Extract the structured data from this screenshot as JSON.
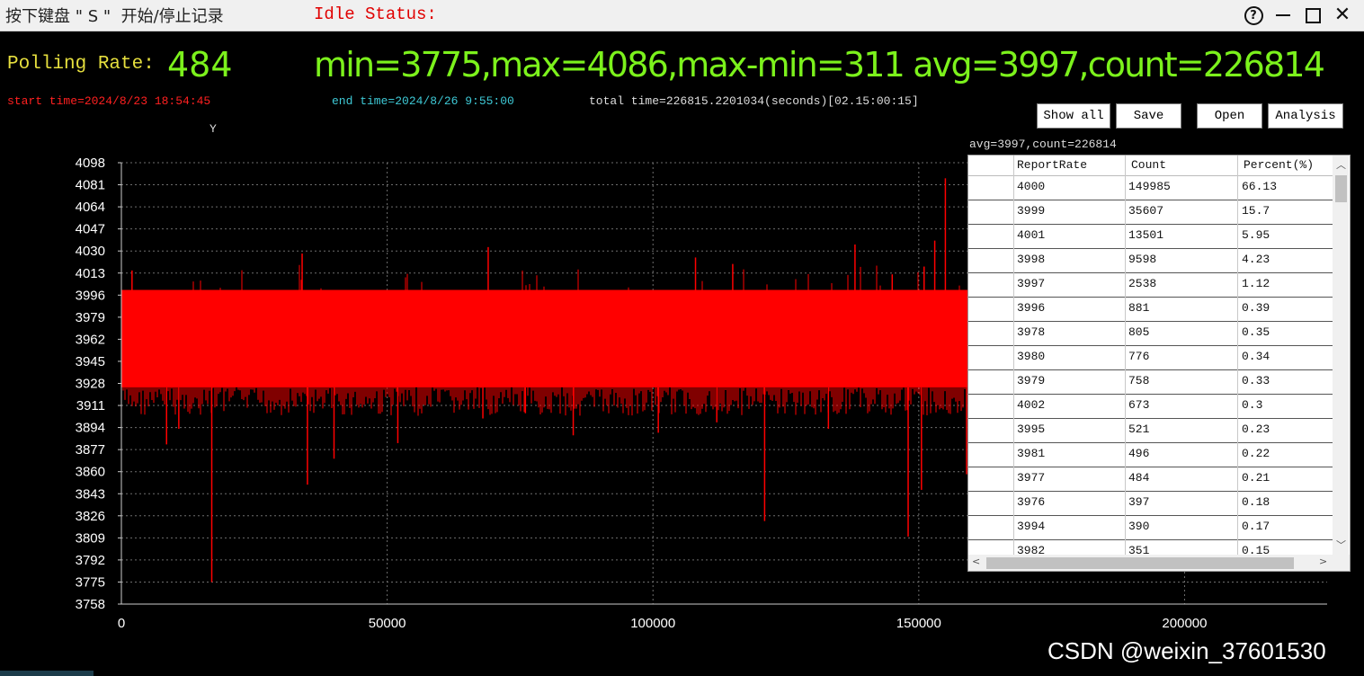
{
  "window": {
    "title_hint": "按下键盘 \" S \"  开始/停止记录",
    "status": "Idle Status:",
    "buttons": {
      "help": "?",
      "close": "✕"
    }
  },
  "header": {
    "polling_rate_label": "Polling Rate:",
    "polling_rate_value": "484",
    "stats": "min=3775,max=4086,max-min=311 avg=3997,count=226814",
    "start_time": "start time=2024/8/23 18:54:45",
    "end_time": "end time=2024/8/26 9:55:00",
    "total_time": "total time=226815.2201034(seconds)[02.15:00:15]"
  },
  "toolbar": {
    "show_all": "Show all",
    "save": "Save",
    "open": "Open",
    "analysis": "Analysis"
  },
  "chart_data": {
    "type": "line",
    "ylabel": "Y",
    "y_ticks": [
      4098,
      4081,
      4064,
      4047,
      4030,
      4013,
      3996,
      3979,
      3962,
      3945,
      3928,
      3911,
      3894,
      3877,
      3860,
      3843,
      3826,
      3809,
      3792,
      3775,
      3758
    ],
    "x_ticks": [
      0,
      50000,
      100000,
      150000,
      200000
    ],
    "ylim": [
      3758,
      4098
    ],
    "xlim": [
      0,
      226814
    ],
    "grid": true,
    "series": [
      {
        "color": "#ff0000",
        "band_upper": 4000,
        "band_lower": 3925,
        "min": 3775,
        "max": 4086,
        "spikes": [
          {
            "x": 8500,
            "y": 3881
          },
          {
            "x": 10800,
            "y": 3893
          },
          {
            "x": 17000,
            "y": 3775
          },
          {
            "x": 35000,
            "y": 3850
          },
          {
            "x": 40000,
            "y": 3870
          },
          {
            "x": 52000,
            "y": 3882
          },
          {
            "x": 68000,
            "y": 3901
          },
          {
            "x": 76000,
            "y": 3905
          },
          {
            "x": 85000,
            "y": 3888
          },
          {
            "x": 101000,
            "y": 3890
          },
          {
            "x": 112000,
            "y": 3898
          },
          {
            "x": 121000,
            "y": 3822
          },
          {
            "x": 133000,
            "y": 3893
          },
          {
            "x": 148000,
            "y": 3810
          },
          {
            "x": 150500,
            "y": 3846
          },
          {
            "x": 159000,
            "y": 3858
          },
          {
            "x": 2000,
            "y": 4015
          },
          {
            "x": 34000,
            "y": 4028
          },
          {
            "x": 69000,
            "y": 4033
          },
          {
            "x": 108000,
            "y": 4025
          },
          {
            "x": 115000,
            "y": 4020
          },
          {
            "x": 138000,
            "y": 4035
          },
          {
            "x": 145000,
            "y": 4012
          },
          {
            "x": 151000,
            "y": 4018
          },
          {
            "x": 153000,
            "y": 4038
          },
          {
            "x": 155000,
            "y": 4086
          }
        ]
      }
    ]
  },
  "distribution": {
    "caption": "avg=3997,count=226814",
    "columns": [
      "ReportRate",
      "Count",
      "Percent(%)"
    ],
    "rows": [
      [
        "4000",
        "149985",
        "66.13"
      ],
      [
        "3999",
        "35607",
        "15.7"
      ],
      [
        "4001",
        "13501",
        "5.95"
      ],
      [
        "3998",
        "9598",
        "4.23"
      ],
      [
        "3997",
        "2538",
        "1.12"
      ],
      [
        "3996",
        "881",
        "0.39"
      ],
      [
        "3978",
        "805",
        "0.35"
      ],
      [
        "3980",
        "776",
        "0.34"
      ],
      [
        "3979",
        "758",
        "0.33"
      ],
      [
        "4002",
        "673",
        "0.3"
      ],
      [
        "3995",
        "521",
        "0.23"
      ],
      [
        "3981",
        "496",
        "0.22"
      ],
      [
        "3977",
        "484",
        "0.21"
      ],
      [
        "3976",
        "397",
        "0.18"
      ],
      [
        "3994",
        "390",
        "0.17"
      ],
      [
        "3982",
        "351",
        "0.15"
      ]
    ]
  },
  "watermark": "CSDN @weixin_37601530",
  "colors": {
    "accent_green": "#7cf21c",
    "label_yellow": "#e6df3e",
    "start_red": "#ff2020",
    "end_cyan": "#3ec9d6",
    "series_red": "#ff0000"
  }
}
